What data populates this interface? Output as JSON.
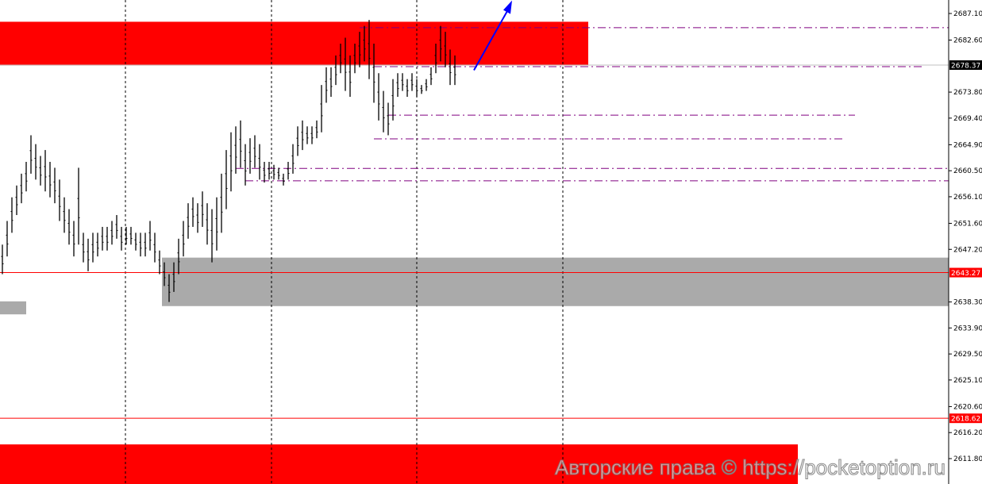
{
  "chart_data": {
    "type": "bar",
    "style": "OHLC price bars (high-low)",
    "ylim": [
      2607.3,
      2689.3
    ],
    "y_ticks": [
      "2687.10",
      "2682.60",
      "2678.37",
      "2673.80",
      "2669.40",
      "2664.90",
      "2660.50",
      "2656.10",
      "2651.60",
      "2647.20",
      "2643.27",
      "2638.30",
      "2633.90",
      "2629.50",
      "2625.10",
      "2620.60",
      "2618.62",
      "2616.20",
      "2611.80"
    ],
    "tick_values": [
      2687.1,
      2682.6,
      2673.8,
      2669.4,
      2664.9,
      2660.5,
      2656.1,
      2651.6,
      2647.2,
      2638.3,
      2633.9,
      2629.5,
      2625.1,
      2620.6,
      2616.2,
      2611.8
    ],
    "price_labels": [
      {
        "text": "2678.37",
        "value": 2678.37,
        "bg": "#000000",
        "line": "#c0c0c0"
      },
      {
        "text": "2643.27",
        "value": 2643.27,
        "bg": "#ff0000",
        "line": "#ff0000"
      },
      {
        "text": "2618.62",
        "value": 2618.62,
        "bg": "#ff0000",
        "line": "#ff0000"
      }
    ],
    "bars": [
      [
        2648,
        2643
      ],
      [
        2652,
        2646
      ],
      [
        2656,
        2650
      ],
      [
        2658,
        2653
      ],
      [
        2660,
        2655
      ],
      [
        2662,
        2657
      ],
      [
        2666.5,
        2660
      ],
      [
        2665,
        2659
      ],
      [
        2663,
        2658
      ],
      [
        2664,
        2657
      ],
      [
        2662,
        2656
      ],
      [
        2661,
        2655
      ],
      [
        2659,
        2652
      ],
      [
        2656,
        2650
      ],
      [
        2654,
        2648
      ],
      [
        2652,
        2646
      ],
      [
        2661,
        2648
      ],
      [
        2650,
        2645
      ],
      [
        2649,
        2643.5
      ],
      [
        2650,
        2645
      ],
      [
        2650,
        2646
      ],
      [
        2651,
        2647
      ],
      [
        2651,
        2647
      ],
      [
        2652,
        2648
      ],
      [
        2653,
        2649
      ],
      [
        2651,
        2647
      ],
      [
        2651,
        2648
      ],
      [
        2651,
        2648
      ],
      [
        2650,
        2647
      ],
      [
        2650,
        2646
      ],
      [
        2650,
        2646
      ],
      [
        2652,
        2647
      ],
      [
        2650,
        2645
      ],
      [
        2647,
        2643
      ],
      [
        2645,
        2641
      ],
      [
        2643,
        2638.3
      ],
      [
        2645,
        2640
      ],
      [
        2649,
        2643
      ],
      [
        2652,
        2646
      ],
      [
        2655,
        2649
      ],
      [
        2656,
        2651
      ],
      [
        2655,
        2650
      ],
      [
        2657,
        2651
      ],
      [
        2655,
        2648
      ],
      [
        2654,
        2645
      ],
      [
        2656,
        2647
      ],
      [
        2660,
        2650
      ],
      [
        2664,
        2654
      ],
      [
        2667,
        2657
      ],
      [
        2668,
        2660
      ],
      [
        2669,
        2661
      ],
      [
        2665,
        2658
      ],
      [
        2666,
        2660
      ],
      [
        2666.5,
        2661
      ],
      [
        2665,
        2659
      ],
      [
        2662,
        2658.5
      ],
      [
        2662,
        2659
      ],
      [
        2661.5,
        2659
      ],
      [
        2661,
        2659
      ],
      [
        2660,
        2658
      ],
      [
        2662,
        2659
      ],
      [
        2665,
        2660
      ],
      [
        2668,
        2663
      ],
      [
        2669,
        2664
      ],
      [
        2668,
        2665
      ],
      [
        2668,
        2665
      ],
      [
        2669,
        2666
      ],
      [
        2675,
        2667
      ],
      [
        2678,
        2672
      ],
      [
        2678,
        2673
      ],
      [
        2680,
        2675
      ],
      [
        2682,
        2677
      ],
      [
        2683,
        2674
      ],
      [
        2680,
        2673
      ],
      [
        2682,
        2677
      ],
      [
        2684,
        2678
      ],
      [
        2685,
        2679
      ],
      [
        2686,
        2676
      ],
      [
        2682,
        2672
      ],
      [
        2677,
        2669
      ],
      [
        2674,
        2667
      ],
      [
        2672,
        2666.5
      ],
      [
        2676,
        2669
      ],
      [
        2677,
        2673
      ],
      [
        2677,
        2674
      ],
      [
        2676,
        2673
      ],
      [
        2677,
        2674
      ],
      [
        2676,
        2673
      ],
      [
        2675,
        2673.5
      ],
      [
        2676,
        2674
      ],
      [
        2678,
        2675
      ],
      [
        2682,
        2677
      ],
      [
        2685,
        2679
      ],
      [
        2684,
        2678
      ],
      [
        2681,
        2675
      ],
      [
        2680,
        2675
      ]
    ],
    "zones": [
      {
        "name": "resistance",
        "color": "#ff0000",
        "from": 2678.3,
        "to": 2685.7,
        "start_bar": 0,
        "end_bar": 123
      },
      {
        "name": "support",
        "color": "#aaaaaa",
        "from": 2637.6,
        "to": 2645.8,
        "start_bar": 34,
        "end_bar": 199
      },
      {
        "name": "support-small",
        "color": "#aaaaaa",
        "from": 2636.2,
        "to": 2638.4,
        "start_bar": 0,
        "end_bar": 5
      },
      {
        "name": "lower",
        "color": "#ff0000",
        "from": 2600,
        "to": 2614.2,
        "start_bar": 0,
        "end_bar": 167
      }
    ],
    "levels": [
      {
        "value": 2684.7,
        "start_bar": 75,
        "end_bar": 199,
        "color": "#800080"
      },
      {
        "value": 2678.1,
        "start_bar": 78,
        "end_bar": 193,
        "color": "#800080"
      },
      {
        "value": 2669.9,
        "start_bar": 81,
        "end_bar": 179,
        "color": "#800080"
      },
      {
        "value": 2665.9,
        "start_bar": 78,
        "end_bar": 177,
        "color": "#800080"
      },
      {
        "value": 2660.9,
        "start_bar": 49,
        "end_bar": 199,
        "color": "#800080"
      },
      {
        "value": 2658.8,
        "start_bar": 51,
        "end_bar": 199,
        "color": "#800080"
      }
    ],
    "arrow": {
      "from_bar": 99,
      "from_value": 2677.5,
      "to_bar": 107,
      "to_value": 2689.3,
      "color": "#0000ff",
      "direction": "up"
    },
    "grid": "vertical dotted"
  },
  "watermark": "Авторские права © https://pocketoption.ru"
}
